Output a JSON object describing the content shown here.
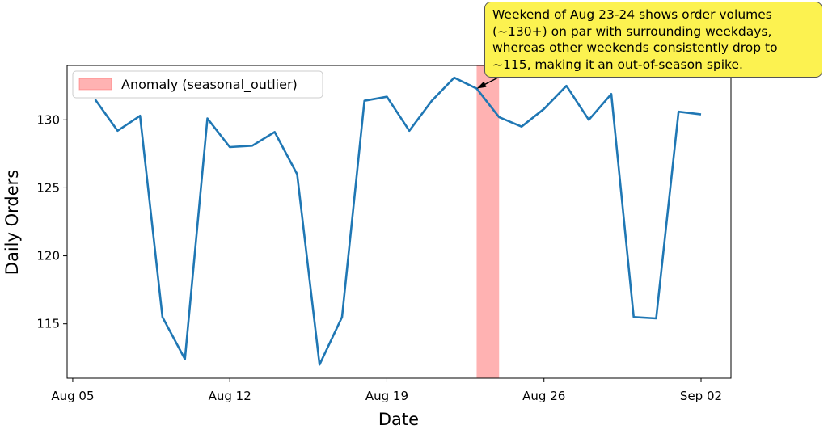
{
  "chart_data": {
    "type": "line",
    "xlabel": "Date",
    "ylabel": "Daily Orders",
    "x": [
      "2024-08-06",
      "2024-08-07",
      "2024-08-08",
      "2024-08-09",
      "2024-08-10",
      "2024-08-11",
      "2024-08-12",
      "2024-08-13",
      "2024-08-14",
      "2024-08-15",
      "2024-08-16",
      "2024-08-17",
      "2024-08-18",
      "2024-08-19",
      "2024-08-20",
      "2024-08-21",
      "2024-08-22",
      "2024-08-23",
      "2024-08-24",
      "2024-08-25",
      "2024-08-26",
      "2024-08-27",
      "2024-08-28",
      "2024-08-29",
      "2024-08-30",
      "2024-08-31",
      "2024-09-01",
      "2024-09-02"
    ],
    "series": [
      {
        "color": "#1f77b4",
        "values": [
          131.5,
          129.2,
          130.3,
          115.5,
          112.4,
          130.1,
          128.0,
          128.1,
          129.1,
          126.0,
          112.0,
          115.5,
          131.4,
          131.7,
          129.2,
          131.4,
          133.1,
          132.3,
          130.2,
          129.5,
          130.8,
          132.5,
          130.0,
          131.9,
          115.5,
          115.4,
          130.6,
          130.4
        ]
      }
    ],
    "x_ticks": [
      "Aug 05",
      "Aug 12",
      "Aug 19",
      "Aug 26",
      "Sep 02"
    ],
    "y_ticks": [
      115,
      120,
      125,
      130
    ],
    "xlim": [
      "2024-08-04T18:00",
      "2024-09-03T08:00"
    ],
    "ylim": [
      111.0,
      134.0
    ],
    "anomaly_span": {
      "start": "2024-08-23",
      "end": "2024-08-24",
      "color": "#ff6666",
      "label": "Anomaly (seasonal_outlier)"
    },
    "legend": {
      "placement": "upper-left",
      "entries": [
        "Anomaly (seasonal_outlier)"
      ]
    },
    "annotation": {
      "text": "Weekend of Aug 23-24 shows order volumes\n(~130+) on par with surrounding weekdays,\nwhereas other weekends consistently drop to\n~115, making it an out-of-season spike.",
      "target_date": "2024-08-23",
      "target_value": 132.3,
      "box_color": "#fcf250"
    },
    "grid": false
  }
}
